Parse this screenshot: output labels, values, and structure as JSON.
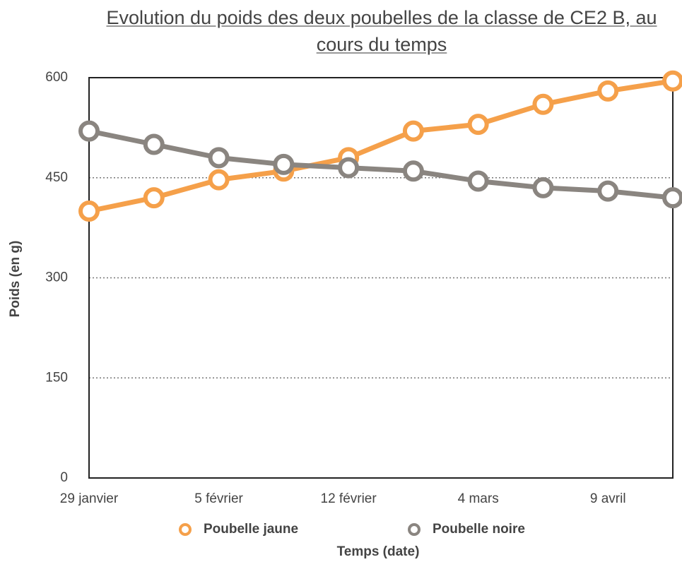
{
  "chart_data": {
    "type": "line",
    "title": "Evolution du poids des deux poubelles de la classe de CE2 B, au cours du temps",
    "x_label": "Temps (date)",
    "y_label": "Poids (en g)",
    "categories": [
      "29 janvier",
      null,
      "5 février",
      null,
      "12 février",
      null,
      "4 mars",
      null,
      "9 avril",
      null
    ],
    "series": [
      {
        "name": "Poubelle jaune",
        "color": "#f5a04a",
        "values": [
          400,
          420,
          447,
          460,
          480,
          520,
          530,
          560,
          580,
          595
        ]
      },
      {
        "name": "Poubelle noire",
        "color": "#8a8580",
        "values": [
          520,
          500,
          480,
          470,
          465,
          460,
          445,
          435,
          430,
          420
        ]
      }
    ],
    "ylim": [
      0,
      600
    ],
    "yticks": [
      0,
      150,
      300,
      450,
      600
    ],
    "grid": true,
    "legend": "bottom"
  }
}
